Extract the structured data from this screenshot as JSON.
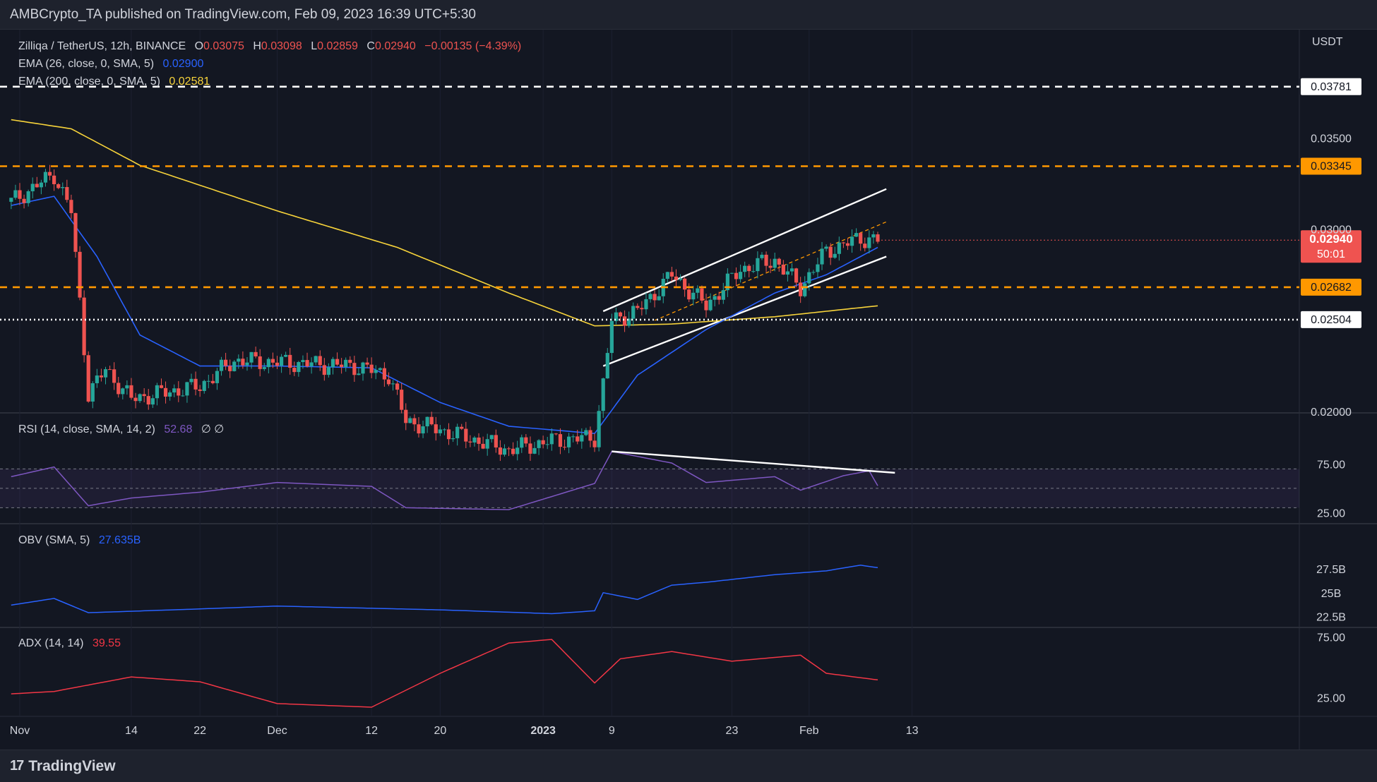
{
  "header": {
    "publisher_line": "AMBCrypto_TA published on TradingView.com, Feb 09, 2023 16:39 UTC+5:30"
  },
  "footer": {
    "brand": "TradingView",
    "logo_icon": "tradingview-logo-icon"
  },
  "colors": {
    "background": "#131722",
    "up": "#26a69a",
    "down": "#ef5350",
    "ema26": "#2962ff",
    "ema200": "#f7d33a",
    "orange": "#ff9800",
    "rsi": "#7e57c2",
    "obv": "#2962ff",
    "adx": "#f23645",
    "trend": "#ffffff"
  },
  "legend": {
    "symbol": "Zilliqa / TetherUS, 12h, BINANCE",
    "o_label": "O",
    "o_value": "0.03075",
    "h_label": "H",
    "h_value": "0.03098",
    "l_label": "L",
    "l_value": "0.02859",
    "c_label": "C",
    "c_value": "0.02940",
    "change": "−0.00135 (−4.39%)",
    "ema26_label": "EMA (26, close, 0, SMA, 5)",
    "ema26_value": "0.02900",
    "ema200_label": "EMA (200, close, 0, SMA, 5)",
    "ema200_value": "0.02581",
    "rsi_label": "RSI (14, close, SMA, 14, 2)",
    "rsi_value": "52.68",
    "rsi_extra": "∅  ∅",
    "obv_label": "OBV (SMA, 5)",
    "obv_value": "27.635B",
    "adx_label": "ADX (14, 14)",
    "adx_value": "39.55"
  },
  "chart_data": {
    "type": "candlestick",
    "symbol": "Zilliqa / TetherUS",
    "timeframe": "12h",
    "exchange": "BINANCE",
    "currency": "USDT",
    "x_tick_labels": [
      "Nov",
      "14",
      "22",
      "Dec",
      "12",
      "20",
      "2023",
      "9",
      "23",
      "Feb",
      "13"
    ],
    "price_axis": {
      "unit": "USDT",
      "ticks": [
        "0.03500",
        "0.03000",
        "0.02000"
      ],
      "range": [
        0.0185,
        0.039
      ]
    },
    "horizontal_levels": [
      {
        "value": "0.03781",
        "style": "dashed",
        "color": "#ffffff"
      },
      {
        "value": "0.03345",
        "style": "dashed",
        "color": "#ff9800"
      },
      {
        "value": "0.02682",
        "style": "dashed",
        "color": "#ff9800"
      },
      {
        "value": "0.02504",
        "style": "dotted",
        "color": "#ffffff"
      }
    ],
    "current_price": {
      "value": "0.02940",
      "countdown": "50:01"
    },
    "ohlc_last": {
      "open": 0.03075,
      "high": 0.03098,
      "low": 0.02859,
      "close": 0.0294
    },
    "price_keypoints": [
      {
        "date": "Oct 31",
        "close": 0.0315
      },
      {
        "date": "Nov 05",
        "close": 0.033
      },
      {
        "date": "Nov 07",
        "close": 0.031
      },
      {
        "date": "Nov 09",
        "close": 0.021
      },
      {
        "date": "Nov 11",
        "close": 0.0223
      },
      {
        "date": "Nov 14",
        "close": 0.0207
      },
      {
        "date": "Nov 22",
        "close": 0.0214
      },
      {
        "date": "Nov 26",
        "close": 0.0228
      },
      {
        "date": "Dec 01",
        "close": 0.0227
      },
      {
        "date": "Dec 10",
        "close": 0.0225
      },
      {
        "date": "Dec 14",
        "close": 0.022
      },
      {
        "date": "Dec 16",
        "close": 0.0195
      },
      {
        "date": "Dec 20",
        "close": 0.019
      },
      {
        "date": "Dec 28",
        "close": 0.0179
      },
      {
        "date": "Jan 02",
        "close": 0.0184
      },
      {
        "date": "Jan 07",
        "close": 0.0186
      },
      {
        "date": "Jan 08",
        "close": 0.0215
      },
      {
        "date": "Jan 09",
        "close": 0.025
      },
      {
        "date": "Jan 12",
        "close": 0.0255
      },
      {
        "date": "Jan 16",
        "close": 0.0275
      },
      {
        "date": "Jan 20",
        "close": 0.0258
      },
      {
        "date": "Jan 24",
        "close": 0.0278
      },
      {
        "date": "Jan 28",
        "close": 0.0283
      },
      {
        "date": "Jan 31",
        "close": 0.0268
      },
      {
        "date": "Feb 03",
        "close": 0.0288
      },
      {
        "date": "Feb 07",
        "close": 0.0295
      },
      {
        "date": "Feb 09",
        "close": 0.0294
      }
    ],
    "ema26": [
      {
        "date": "Oct 31",
        "value": 0.0313
      },
      {
        "date": "Nov 05",
        "value": 0.0318
      },
      {
        "date": "Nov 10",
        "value": 0.0285
      },
      {
        "date": "Nov 15",
        "value": 0.0242
      },
      {
        "date": "Nov 22",
        "value": 0.0225
      },
      {
        "date": "Dec 01",
        "value": 0.0225
      },
      {
        "date": "Dec 12",
        "value": 0.0224
      },
      {
        "date": "Dec 20",
        "value": 0.0205
      },
      {
        "date": "Dec 28",
        "value": 0.0192
      },
      {
        "date": "Jan 07",
        "value": 0.0188
      },
      {
        "date": "Jan 12",
        "value": 0.022
      },
      {
        "date": "Jan 20",
        "value": 0.0245
      },
      {
        "date": "Jan 28",
        "value": 0.0265
      },
      {
        "date": "Feb 03",
        "value": 0.0275
      },
      {
        "date": "Feb 09",
        "value": 0.029
      }
    ],
    "ema200": [
      {
        "date": "Oct 31",
        "value": 0.036
      },
      {
        "date": "Nov 07",
        "value": 0.0355
      },
      {
        "date": "Nov 15",
        "value": 0.0335
      },
      {
        "date": "Dec 01",
        "value": 0.031
      },
      {
        "date": "Dec 15",
        "value": 0.029
      },
      {
        "date": "Dec 28",
        "value": 0.0265
      },
      {
        "date": "Jan 07",
        "value": 0.0247
      },
      {
        "date": "Jan 16",
        "value": 0.0248
      },
      {
        "date": "Jan 28",
        "value": 0.0252
      },
      {
        "date": "Feb 09",
        "value": 0.0258
      }
    ],
    "rsi": {
      "axis_ticks": [
        "75.00",
        "25.00"
      ],
      "range": [
        15,
        95
      ],
      "band": [
        30,
        70
      ],
      "points": [
        {
          "date": "Oct 31",
          "value": 62
        },
        {
          "date": "Nov 05",
          "value": 72
        },
        {
          "date": "Nov 09",
          "value": 32
        },
        {
          "date": "Nov 14",
          "value": 40
        },
        {
          "date": "Nov 22",
          "value": 46
        },
        {
          "date": "Dec 01",
          "value": 56
        },
        {
          "date": "Dec 12",
          "value": 52
        },
        {
          "date": "Dec 16",
          "value": 30
        },
        {
          "date": "Dec 28",
          "value": 28
        },
        {
          "date": "Jan 07",
          "value": 55
        },
        {
          "date": "Jan 09",
          "value": 88
        },
        {
          "date": "Jan 16",
          "value": 76
        },
        {
          "date": "Jan 20",
          "value": 56
        },
        {
          "date": "Jan 28",
          "value": 62
        },
        {
          "date": "Jan 31",
          "value": 48
        },
        {
          "date": "Feb 05",
          "value": 63
        },
        {
          "date": "Feb 08",
          "value": 68
        },
        {
          "date": "Feb 09",
          "value": 52.68
        }
      ]
    },
    "obv": {
      "axis_ticks": [
        "27.5B",
        "25B",
        "22.5B"
      ],
      "unit": "B",
      "range": [
        21.5,
        28.7
      ],
      "points": [
        {
          "date": "Oct 31",
          "value": 23.7
        },
        {
          "date": "Nov 05",
          "value": 24.4
        },
        {
          "date": "Nov 09",
          "value": 22.9
        },
        {
          "date": "Nov 22",
          "value": 23.3
        },
        {
          "date": "Dec 01",
          "value": 23.6
        },
        {
          "date": "Dec 20",
          "value": 23.2
        },
        {
          "date": "Jan 02",
          "value": 22.8
        },
        {
          "date": "Jan 07",
          "value": 23.1
        },
        {
          "date": "Jan 08",
          "value": 25.0
        },
        {
          "date": "Jan 12",
          "value": 24.3
        },
        {
          "date": "Jan 16",
          "value": 25.8
        },
        {
          "date": "Jan 20",
          "value": 26.1
        },
        {
          "date": "Jan 28",
          "value": 26.9
        },
        {
          "date": "Feb 03",
          "value": 27.3
        },
        {
          "date": "Feb 07",
          "value": 27.9
        },
        {
          "date": "Feb 09",
          "value": 27.635
        }
      ]
    },
    "adx": {
      "axis_ticks": [
        "75.00",
        "25.00"
      ],
      "range": [
        10,
        80
      ],
      "points": [
        {
          "date": "Oct 31",
          "value": 28
        },
        {
          "date": "Nov 05",
          "value": 30
        },
        {
          "date": "Nov 14",
          "value": 42
        },
        {
          "date": "Nov 22",
          "value": 38
        },
        {
          "date": "Dec 01",
          "value": 20
        },
        {
          "date": "Dec 12",
          "value": 17
        },
        {
          "date": "Dec 20",
          "value": 45
        },
        {
          "date": "Dec 28",
          "value": 70
        },
        {
          "date": "Jan 02",
          "value": 73
        },
        {
          "date": "Jan 07",
          "value": 37
        },
        {
          "date": "Jan 10",
          "value": 57
        },
        {
          "date": "Jan 16",
          "value": 63
        },
        {
          "date": "Jan 23",
          "value": 55
        },
        {
          "date": "Jan 31",
          "value": 60
        },
        {
          "date": "Feb 03",
          "value": 45
        },
        {
          "date": "Feb 09",
          "value": 39.55
        }
      ]
    },
    "annotations": [
      "ascending parallel channel (white) from Jan 08 to Feb 13",
      "orange dashed channel midline",
      "RSI descending trendline (bearish divergence) from Jan 09 to Feb 09"
    ]
  }
}
